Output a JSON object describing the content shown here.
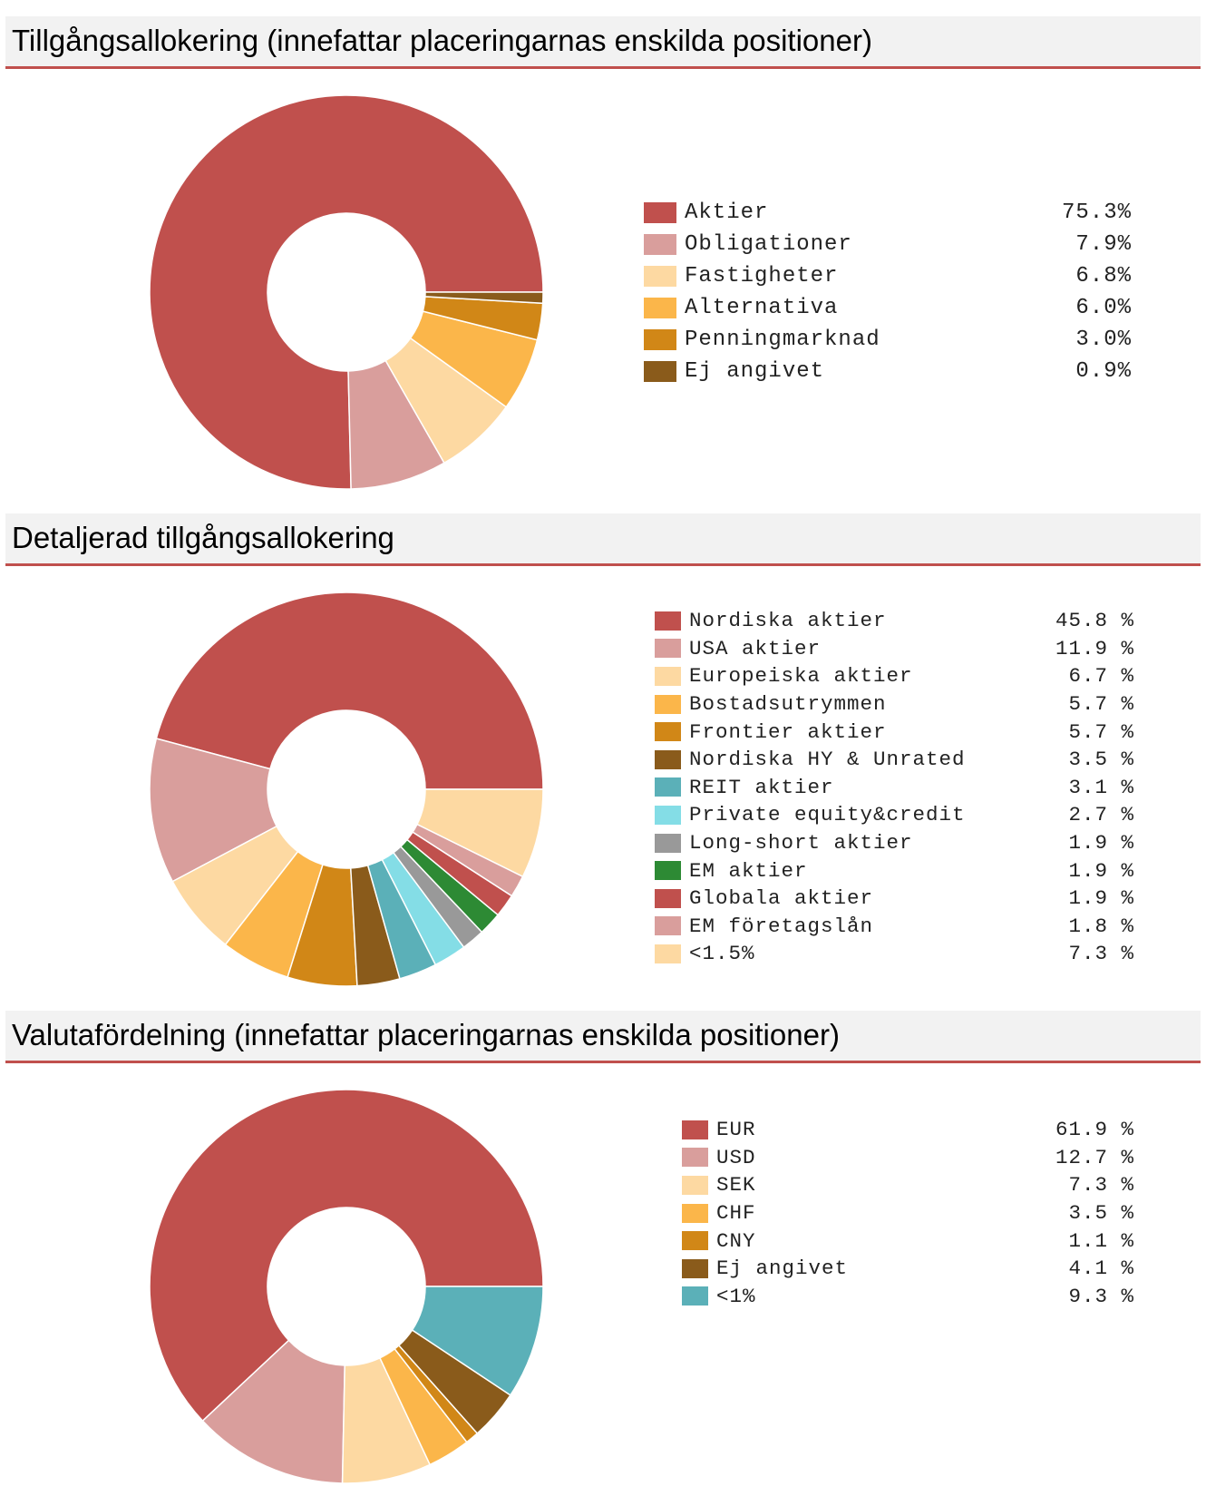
{
  "colors": {
    "header_bg": "#f2f2f2",
    "header_rule": "#c0504d"
  },
  "sections": [
    {
      "title": "Tillgångsallokering (innefattar placeringarnas enskilda positioner)"
    },
    {
      "title": "Detaljerad tillgångsallokering"
    },
    {
      "title": "Valutafördelning (innefattar placeringarnas enskilda positioner)"
    }
  ],
  "chart_data": [
    {
      "type": "pie",
      "style": "donut",
      "title": "Tillgångsallokering (innefattar placeringarnas enskilda positioner)",
      "legend_position": "right",
      "slices": [
        {
          "label": "Aktier",
          "value": 75.3,
          "display": "75.3%",
          "color": "#c0504d"
        },
        {
          "label": "Obligationer",
          "value": 7.9,
          "display": "7.9%",
          "color": "#d99e9c"
        },
        {
          "label": "Fastigheter",
          "value": 6.8,
          "display": "6.8%",
          "color": "#fdd9a2"
        },
        {
          "label": "Alternativa",
          "value": 6.0,
          "display": "6.0%",
          "color": "#fbb64a"
        },
        {
          "label": "Penningmarknad",
          "value": 3.0,
          "display": "3.0%",
          "color": "#d18717"
        },
        {
          "label": "Ej angivet",
          "value": 0.9,
          "display": "0.9%",
          "color": "#8a5b1b"
        }
      ]
    },
    {
      "type": "pie",
      "style": "donut",
      "title": "Detaljerad tillgångsallokering",
      "legend_position": "right",
      "slices": [
        {
          "label": "Nordiska aktier",
          "value": 45.8,
          "display": "45.8 %",
          "color": "#c0504d"
        },
        {
          "label": "USA aktier",
          "value": 11.9,
          "display": "11.9 %",
          "color": "#d99e9c"
        },
        {
          "label": "Europeiska aktier",
          "value": 6.7,
          "display": "6.7 %",
          "color": "#fdd9a2"
        },
        {
          "label": "Bostadsutrymmen",
          "value": 5.7,
          "display": "5.7 %",
          "color": "#fbb64a"
        },
        {
          "label": "Frontier aktier",
          "value": 5.7,
          "display": "5.7 %",
          "color": "#d18717"
        },
        {
          "label": "Nordiska HY & Unrated",
          "value": 3.5,
          "display": "3.5 %",
          "color": "#8a5b1b"
        },
        {
          "label": "REIT aktier",
          "value": 3.1,
          "display": "3.1 %",
          "color": "#5bb0b8"
        },
        {
          "label": "Private equity&credit",
          "value": 2.7,
          "display": "2.7 %",
          "color": "#84dde6"
        },
        {
          "label": "Long-short aktier",
          "value": 1.9,
          "display": "1.9 %",
          "color": "#999999"
        },
        {
          "label": "EM aktier",
          "value": 1.9,
          "display": "1.9 %",
          "color": "#2d8a34"
        },
        {
          "label": "Globala aktier",
          "value": 1.9,
          "display": "1.9 %",
          "color": "#c0504d"
        },
        {
          "label": "EM företagslån",
          "value": 1.8,
          "display": "1.8 %",
          "color": "#d99e9c"
        },
        {
          "label": "<1.5%",
          "value": 7.3,
          "display": "7.3 %",
          "color": "#fdd9a2"
        }
      ]
    },
    {
      "type": "pie",
      "style": "donut",
      "title": "Valutafördelning (innefattar placeringarnas enskilda positioner)",
      "legend_position": "right",
      "slices": [
        {
          "label": "EUR",
          "value": 61.9,
          "display": "61.9 %",
          "color": "#c0504d"
        },
        {
          "label": "USD",
          "value": 12.7,
          "display": "12.7 %",
          "color": "#d99e9c"
        },
        {
          "label": "SEK",
          "value": 7.3,
          "display": "7.3 %",
          "color": "#fdd9a2"
        },
        {
          "label": "CHF",
          "value": 3.5,
          "display": "3.5 %",
          "color": "#fbb64a"
        },
        {
          "label": "CNY",
          "value": 1.1,
          "display": "1.1 %",
          "color": "#d18717"
        },
        {
          "label": "Ej angivet",
          "value": 4.1,
          "display": "4.1 %",
          "color": "#8a5b1b"
        },
        {
          "label": "<1%",
          "value": 9.3,
          "display": "9.3 %",
          "color": "#5bb0b8"
        }
      ]
    }
  ]
}
